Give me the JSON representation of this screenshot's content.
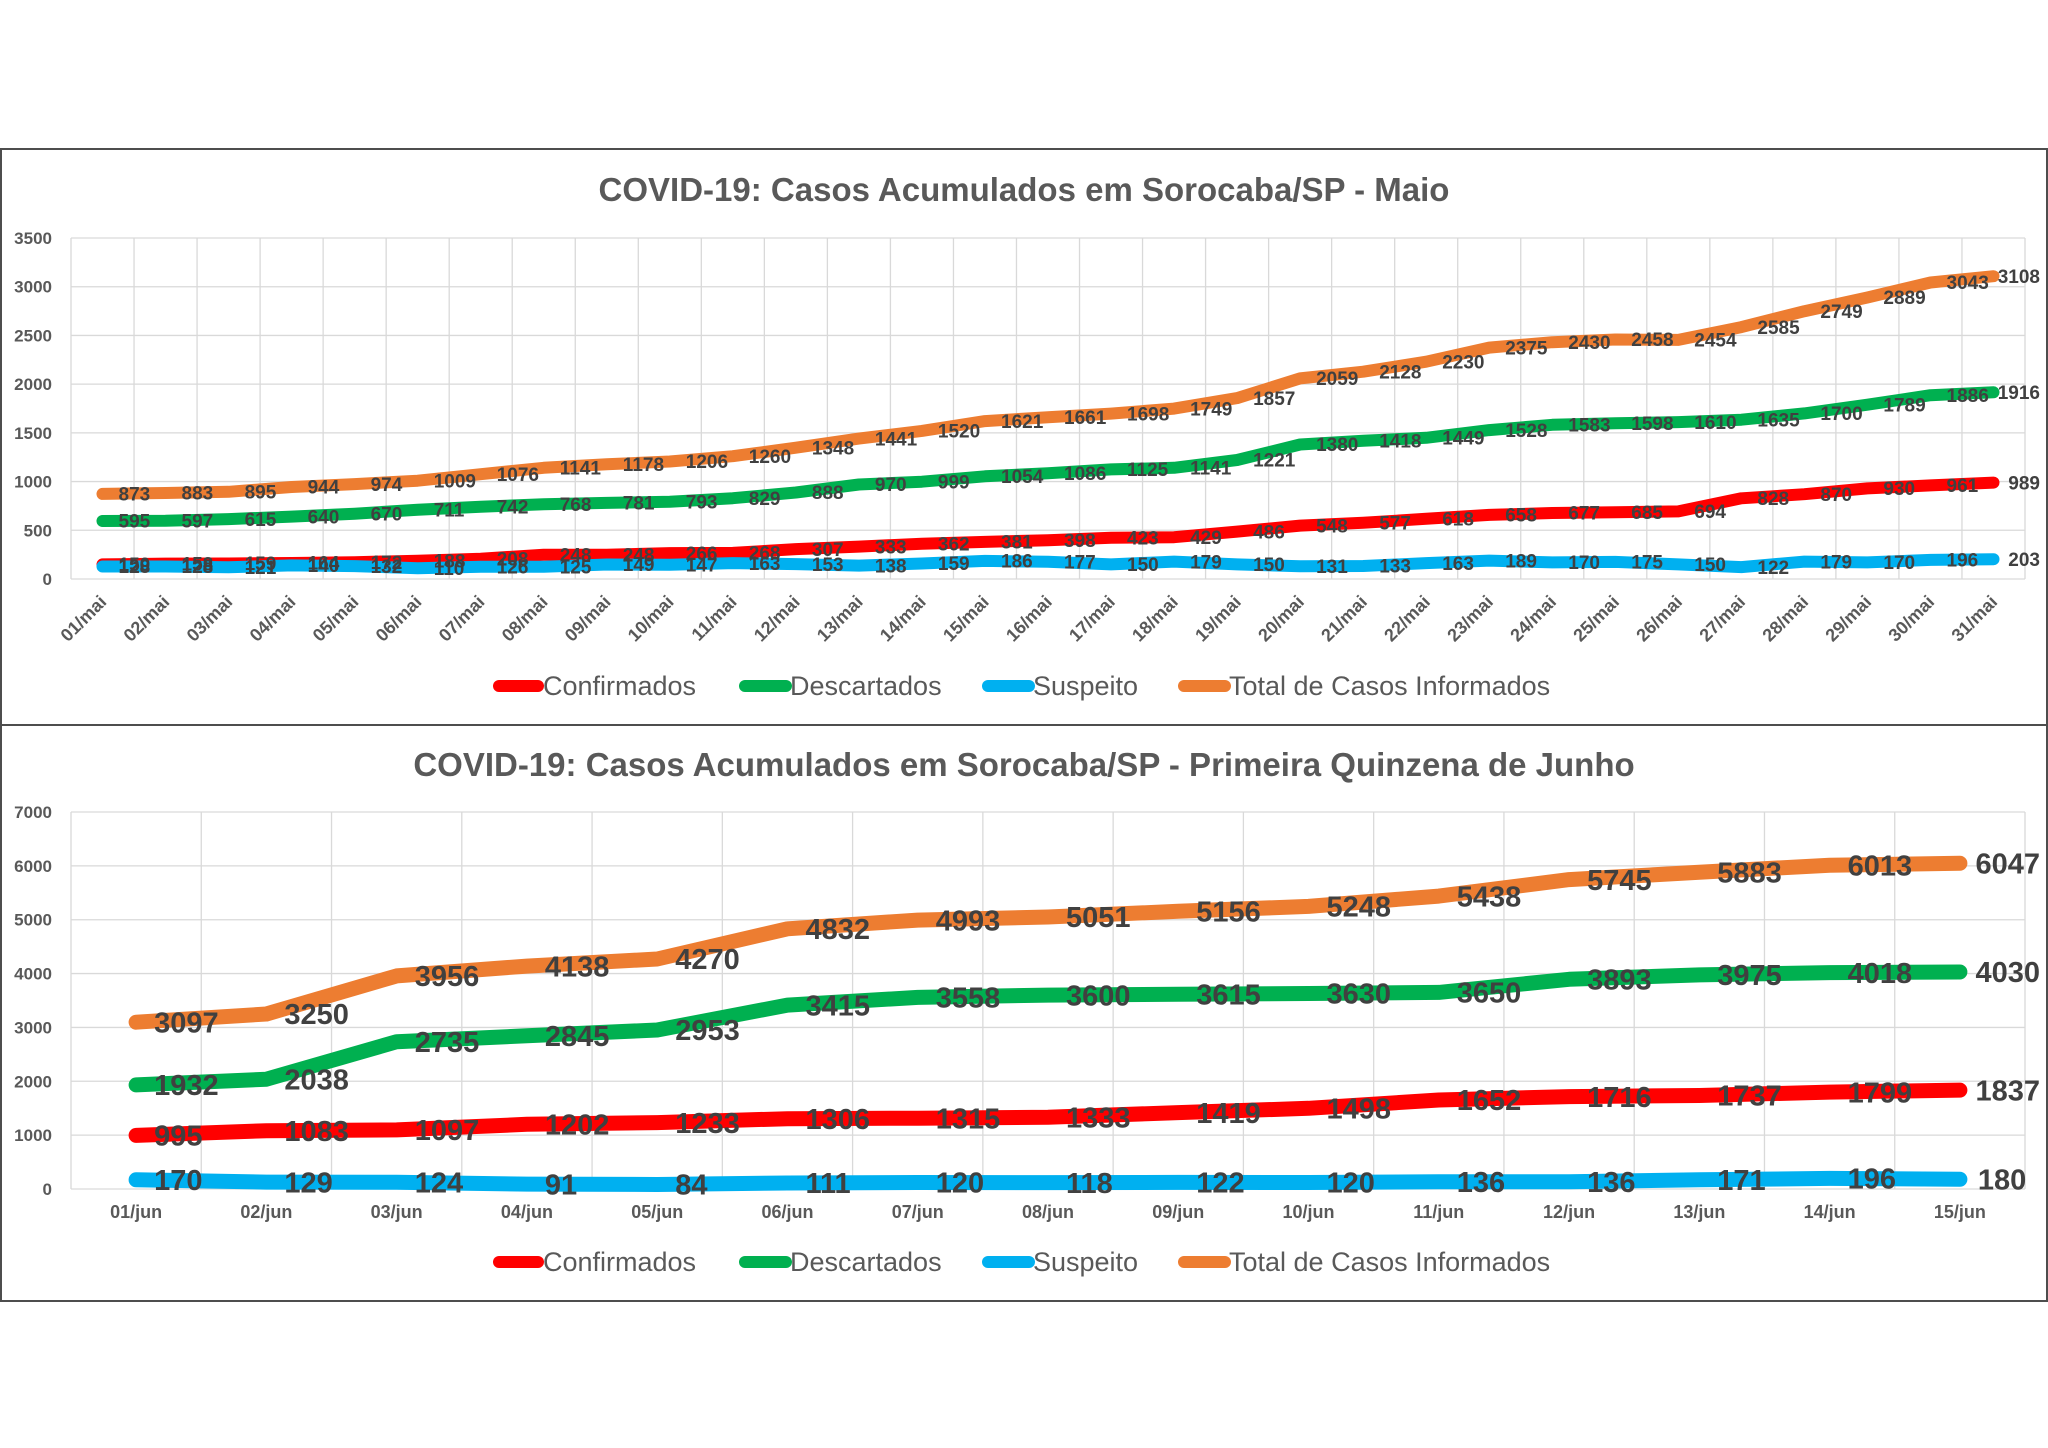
{
  "chart_data": [
    {
      "type": "line",
      "title": "COVID-19: Casos Acumulados em Sorocaba/SP - Maio",
      "categories": [
        "01/mai",
        "02/mai",
        "03/mai",
        "04/mai",
        "05/mai",
        "06/mai",
        "07/mai",
        "08/mai",
        "09/mai",
        "10/mai",
        "11/mai",
        "12/mai",
        "13/mai",
        "14/mai",
        "15/mai",
        "16/mai",
        "17/mai",
        "18/mai",
        "19/mai",
        "20/mai",
        "21/mai",
        "22/mai",
        "23/mai",
        "24/mai",
        "25/mai",
        "26/mai",
        "27/mai",
        "28/mai",
        "29/mai",
        "30/mai",
        "31/mai"
      ],
      "ylim": [
        0,
        3500
      ],
      "yticks": [
        0,
        500,
        1000,
        1500,
        2000,
        2500,
        3000,
        3500
      ],
      "grid": true,
      "legend": "bottom",
      "series": [
        {
          "name": "Confirmados",
          "color": "#FF0000",
          "values": [
            150,
            158,
            159,
            164,
            172,
            188,
            208,
            248,
            248,
            266,
            268,
            307,
            333,
            362,
            381,
            398,
            423,
            429,
            486,
            548,
            577,
            618,
            658,
            677,
            685,
            694,
            828,
            870,
            930,
            961,
            989
          ]
        },
        {
          "name": "Descartados",
          "color": "#00B050",
          "values": [
            595,
            597,
            615,
            640,
            670,
            711,
            742,
            768,
            781,
            793,
            829,
            888,
            970,
            999,
            1054,
            1086,
            1125,
            1141,
            1221,
            1380,
            1418,
            1449,
            1528,
            1583,
            1598,
            1610,
            1635,
            1700,
            1789,
            1886,
            1916
          ]
        },
        {
          "name": "Suspeito",
          "color": "#00B0F0",
          "values": [
            128,
            128,
            121,
            140,
            132,
            110,
            126,
            125,
            149,
            147,
            163,
            153,
            138,
            159,
            186,
            177,
            150,
            179,
            150,
            131,
            133,
            163,
            189,
            170,
            175,
            150,
            122,
            179,
            170,
            196,
            203
          ]
        },
        {
          "name": "Total de Casos Informados",
          "color": "#ED7D31",
          "values": [
            873,
            883,
            895,
            944,
            974,
            1009,
            1076,
            1141,
            1178,
            1206,
            1260,
            1348,
            1441,
            1520,
            1621,
            1661,
            1698,
            1749,
            1857,
            2059,
            2128,
            2230,
            2375,
            2430,
            2458,
            2454,
            2585,
            2749,
            2889,
            3043,
            3108
          ]
        }
      ]
    },
    {
      "type": "line",
      "title": "COVID-19: Casos Acumulados em Sorocaba/SP - Primeira Quinzena de Junho",
      "categories": [
        "01/jun",
        "02/jun",
        "03/jun",
        "04/jun",
        "05/jun",
        "06/jun",
        "07/jun",
        "08/jun",
        "09/jun",
        "10/jun",
        "11/jun",
        "12/jun",
        "13/jun",
        "14/jun",
        "15/jun"
      ],
      "ylim": [
        0,
        7000
      ],
      "yticks": [
        0,
        1000,
        2000,
        3000,
        4000,
        5000,
        6000,
        7000
      ],
      "grid": true,
      "legend": "bottom",
      "series": [
        {
          "name": "Confirmados",
          "color": "#FF0000",
          "values": [
            995,
            1083,
            1097,
            1202,
            1233,
            1306,
            1315,
            1333,
            1419,
            1498,
            1652,
            1716,
            1737,
            1799,
            1837
          ]
        },
        {
          "name": "Descartados",
          "color": "#00B050",
          "values": [
            1932,
            2038,
            2735,
            2845,
            2953,
            3415,
            3558,
            3600,
            3615,
            3630,
            3650,
            3893,
            3975,
            4018,
            4030
          ]
        },
        {
          "name": "Suspeito",
          "color": "#00B0F0",
          "values": [
            170,
            129,
            124,
            91,
            84,
            111,
            120,
            118,
            122,
            120,
            136,
            136,
            171,
            196,
            180
          ]
        },
        {
          "name": "Total de Casos Informados",
          "color": "#ED7D31",
          "values": [
            3097,
            3250,
            3956,
            4138,
            4270,
            4832,
            4993,
            5051,
            5156,
            5248,
            5438,
            5745,
            5883,
            6013,
            6047
          ]
        }
      ]
    }
  ]
}
